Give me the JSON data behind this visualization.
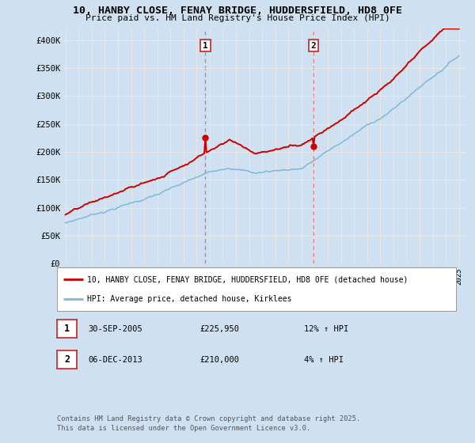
{
  "title1": "10, HANBY CLOSE, FENAY BRIDGE, HUDDERSFIELD, HD8 0FE",
  "title2": "Price paid vs. HM Land Registry's House Price Index (HPI)",
  "ylim": [
    0,
    420000
  ],
  "yticks": [
    0,
    50000,
    100000,
    150000,
    200000,
    250000,
    300000,
    350000,
    400000
  ],
  "line1_color": "#cc0000",
  "line2_color": "#7fb8d8",
  "vline_color": "#e87070",
  "legend_line1": "10, HANBY CLOSE, FENAY BRIDGE, HUDDERSFIELD, HD8 0FE (detached house)",
  "legend_line2": "HPI: Average price, detached house, Kirklees",
  "table_entries": [
    {
      "num": "1",
      "date": "30-SEP-2005",
      "price": "£225,950",
      "pct": "12% ↑ HPI"
    },
    {
      "num": "2",
      "date": "06-DEC-2013",
      "price": "£210,000",
      "pct": "4% ↑ HPI"
    }
  ],
  "footer": "Contains HM Land Registry data © Crown copyright and database right 2025.\nThis data is licensed under the Open Government Licence v3.0.",
  "bg_color": "#cfe0f0",
  "plot_bg_color": "#cfe0f0",
  "grid_color": "#e8e8e8",
  "sale1_year": 2005,
  "sale1_month": 9,
  "sale1_price": 225950,
  "sale2_year": 2013,
  "sale2_month": 12,
  "sale2_price": 210000,
  "start_year": 1995,
  "end_year": 2025
}
